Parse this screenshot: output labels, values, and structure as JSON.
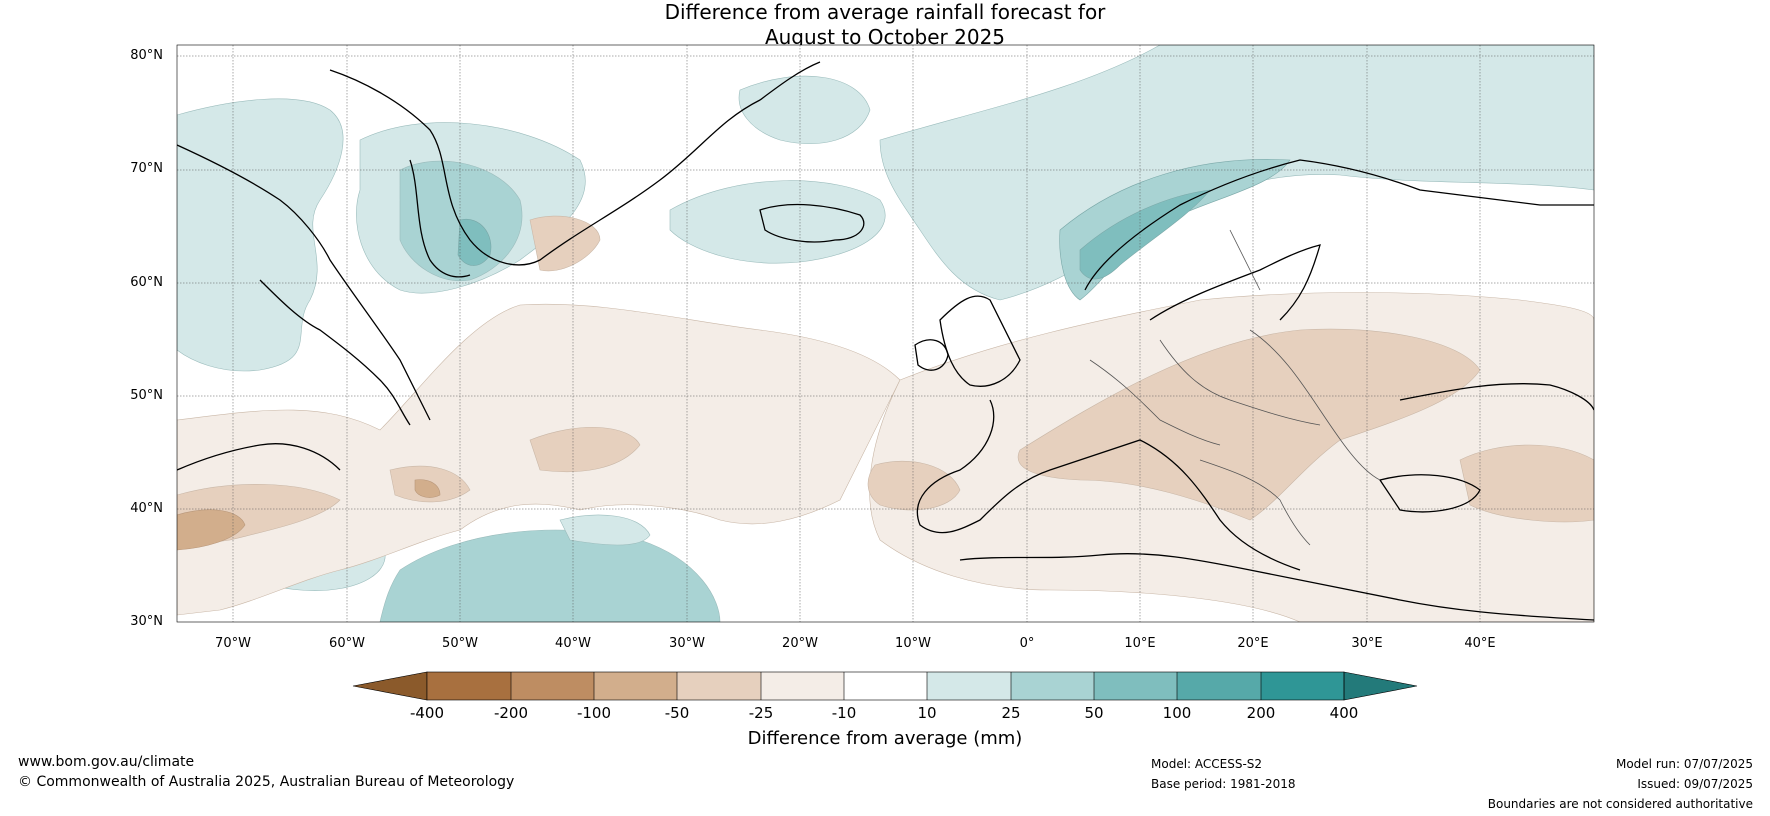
{
  "title_line1": "Difference from average rainfall forecast for",
  "title_line2": "August to October 2025",
  "lat_labels": [
    "80°N",
    "70°N",
    "60°N",
    "50°N",
    "40°N",
    "30°N"
  ],
  "lon_labels": [
    "70°W",
    "60°W",
    "50°W",
    "40°W",
    "30°W",
    "20°W",
    "10°W",
    "0°",
    "10°E",
    "20°E",
    "30°E",
    "40°E"
  ],
  "colorbar": {
    "ticks": [
      "-400",
      "-200",
      "-100",
      "-50",
      "-25",
      "-10",
      "10",
      "25",
      "50",
      "100",
      "200",
      "400"
    ],
    "colors": [
      "#8b5a2b",
      "#a8703f",
      "#be8d62",
      "#d2ae8c",
      "#e6d0be",
      "#f4ede7",
      "#ffffff",
      "#d4e8e8",
      "#a9d3d3",
      "#7fbebe",
      "#56a9a9",
      "#2f9696",
      "#237a7a"
    ],
    "label": "Difference from average (mm)"
  },
  "footer": {
    "site": "www.bom.gov.au/climate",
    "copyright": "© Commonwealth of Australia 2025, Australian Bureau of Meteorology",
    "model": "Model: ACCESS-S2",
    "base_period": "Base period: 1981-2018",
    "model_run": "Model run: 07/07/2025",
    "issued": "Issued: 09/07/2025",
    "boundaries": "Boundaries are not considered authoritative"
  }
}
